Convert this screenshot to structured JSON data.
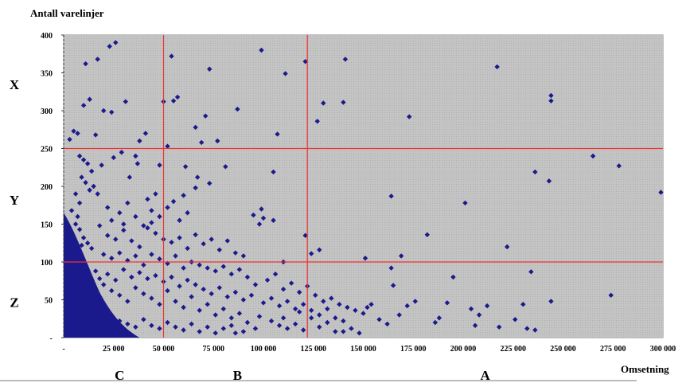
{
  "chart_data": {
    "type": "scatter",
    "ylabel": "Antall varelinjer",
    "xlabel": "Omsetning",
    "xlim": [
      0,
      300000
    ],
    "ylim": [
      0,
      400
    ],
    "x_ticks": [
      0,
      25000,
      50000,
      75000,
      100000,
      125000,
      150000,
      175000,
      200000,
      225000,
      250000,
      275000,
      300000
    ],
    "x_tick_labels": [
      "-",
      "25 000",
      "50 000",
      "75 000",
      "100 000",
      "125 000",
      "150 000",
      "175 000",
      "200 000",
      "225 000",
      "250 000",
      "275 000",
      "300 000"
    ],
    "y_ticks": [
      0,
      50,
      100,
      150,
      200,
      250,
      300,
      350,
      400
    ],
    "y_tick_labels": [
      "-",
      "50",
      "100",
      "150",
      "200",
      "250",
      "300",
      "350",
      "400"
    ],
    "x_segments": [
      {
        "label": "C",
        "x": 28000
      },
      {
        "label": "B",
        "x": 87000
      },
      {
        "label": "A",
        "x": 211000
      }
    ],
    "y_segments": [
      {
        "label": "X",
        "y": 335
      },
      {
        "label": "Y",
        "y": 182
      },
      {
        "label": "Z",
        "y": 47
      }
    ],
    "reference_lines": {
      "vertical": [
        50000,
        122000
      ],
      "horizontal": [
        100,
        250
      ],
      "color": "#ee3333"
    },
    "plot_background": "#c0c0c0",
    "marker_color": "#1a1a8c",
    "points": [
      [
        99000,
        380
      ],
      [
        26000,
        390
      ],
      [
        23000,
        385
      ],
      [
        11000,
        362
      ],
      [
        17000,
        368
      ],
      [
        54000,
        372
      ],
      [
        121000,
        365
      ],
      [
        141000,
        368
      ],
      [
        73000,
        355
      ],
      [
        111000,
        349
      ],
      [
        217000,
        358
      ],
      [
        13000,
        315
      ],
      [
        10000,
        307
      ],
      [
        20000,
        300
      ],
      [
        24000,
        298
      ],
      [
        31000,
        312
      ],
      [
        50000,
        312
      ],
      [
        55000,
        313
      ],
      [
        57000,
        318
      ],
      [
        71000,
        293
      ],
      [
        87000,
        302
      ],
      [
        130000,
        310
      ],
      [
        140000,
        311
      ],
      [
        173000,
        292
      ],
      [
        244000,
        320
      ],
      [
        244000,
        313
      ],
      [
        127000,
        286
      ],
      [
        5000,
        273
      ],
      [
        7000,
        270
      ],
      [
        16000,
        268
      ],
      [
        3000,
        262
      ],
      [
        38000,
        260
      ],
      [
        41000,
        270
      ],
      [
        66000,
        278
      ],
      [
        69000,
        258
      ],
      [
        77000,
        260
      ],
      [
        107000,
        269
      ],
      [
        52000,
        253
      ],
      [
        8000,
        240
      ],
      [
        10000,
        235
      ],
      [
        12000,
        230
      ],
      [
        14000,
        220
      ],
      [
        9000,
        212
      ],
      [
        11000,
        205
      ],
      [
        15000,
        200
      ],
      [
        13000,
        195
      ],
      [
        17000,
        190
      ],
      [
        19000,
        228
      ],
      [
        25000,
        238
      ],
      [
        29000,
        245
      ],
      [
        33000,
        212
      ],
      [
        36000,
        240
      ],
      [
        37000,
        230
      ],
      [
        48000,
        228
      ],
      [
        61000,
        226
      ],
      [
        67000,
        212
      ],
      [
        81000,
        226
      ],
      [
        66000,
        198
      ],
      [
        73000,
        204
      ],
      [
        105000,
        219
      ],
      [
        164000,
        187
      ],
      [
        201000,
        178
      ],
      [
        236000,
        219
      ],
      [
        243000,
        207
      ],
      [
        265000,
        240
      ],
      [
        278000,
        227
      ],
      [
        299000,
        192
      ],
      [
        95000,
        162
      ],
      [
        99000,
        170
      ],
      [
        100000,
        158
      ],
      [
        98000,
        150
      ],
      [
        105000,
        155
      ],
      [
        121000,
        135
      ],
      [
        110000,
        100
      ],
      [
        124000,
        111
      ],
      [
        128000,
        116
      ],
      [
        151000,
        105
      ],
      [
        169000,
        108
      ],
      [
        182000,
        136
      ],
      [
        222000,
        120
      ],
      [
        164000,
        92
      ],
      [
        165000,
        69
      ],
      [
        195000,
        80
      ],
      [
        234000,
        87
      ],
      [
        6000,
        150
      ],
      [
        8000,
        143
      ],
      [
        10000,
        132
      ],
      [
        12000,
        125
      ],
      [
        14000,
        118
      ],
      [
        18000,
        148
      ],
      [
        22000,
        135
      ],
      [
        26000,
        130
      ],
      [
        30000,
        142
      ],
      [
        34000,
        128
      ],
      [
        38000,
        120
      ],
      [
        42000,
        145
      ],
      [
        46000,
        138
      ],
      [
        50000,
        130
      ],
      [
        54000,
        126
      ],
      [
        58000,
        132
      ],
      [
        62000,
        118
      ],
      [
        66000,
        136
      ],
      [
        70000,
        124
      ],
      [
        74000,
        130
      ],
      [
        78000,
        116
      ],
      [
        82000,
        128
      ],
      [
        86000,
        112
      ],
      [
        90000,
        108
      ],
      [
        22000,
        172
      ],
      [
        28000,
        165
      ],
      [
        32000,
        178
      ],
      [
        44000,
        168
      ],
      [
        48000,
        160
      ],
      [
        52000,
        172
      ],
      [
        58000,
        155
      ],
      [
        62000,
        165
      ],
      [
        42000,
        183
      ],
      [
        46000,
        190
      ],
      [
        55000,
        180
      ],
      [
        60000,
        188
      ],
      [
        24000,
        155
      ],
      [
        30000,
        150
      ],
      [
        36000,
        160
      ],
      [
        40000,
        148
      ],
      [
        44000,
        152
      ],
      [
        20000,
        110
      ],
      [
        24000,
        105
      ],
      [
        28000,
        112
      ],
      [
        32000,
        102
      ],
      [
        36000,
        108
      ],
      [
        40000,
        96
      ],
      [
        44000,
        110
      ],
      [
        48000,
        104
      ],
      [
        52000,
        98
      ],
      [
        56000,
        108
      ],
      [
        60000,
        92
      ],
      [
        64000,
        100
      ],
      [
        68000,
        96
      ],
      [
        72000,
        92
      ],
      [
        76000,
        88
      ],
      [
        80000,
        94
      ],
      [
        84000,
        84
      ],
      [
        88000,
        90
      ],
      [
        92000,
        80
      ],
      [
        96000,
        70
      ],
      [
        102000,
        76
      ],
      [
        106000,
        84
      ],
      [
        110000,
        64
      ],
      [
        114000,
        72
      ],
      [
        118000,
        60
      ],
      [
        122000,
        68
      ],
      [
        126000,
        56
      ],
      [
        130000,
        48
      ],
      [
        134000,
        52
      ],
      [
        138000,
        44
      ],
      [
        142000,
        40
      ],
      [
        146000,
        36
      ],
      [
        150000,
        32
      ],
      [
        154000,
        44
      ],
      [
        158000,
        24
      ],
      [
        162000,
        18
      ],
      [
        168000,
        30
      ],
      [
        176000,
        48
      ],
      [
        186000,
        20
      ],
      [
        192000,
        46
      ],
      [
        204000,
        38
      ],
      [
        208000,
        30
      ],
      [
        212000,
        42
      ],
      [
        218000,
        14
      ],
      [
        226000,
        24
      ],
      [
        230000,
        44
      ],
      [
        236000,
        10
      ],
      [
        244000,
        48
      ],
      [
        274000,
        56
      ],
      [
        232000,
        12
      ],
      [
        206000,
        16
      ],
      [
        188000,
        26
      ],
      [
        172000,
        42
      ],
      [
        152000,
        40
      ],
      [
        140000,
        8
      ],
      [
        118000,
        34
      ],
      [
        110000,
        26
      ],
      [
        96000,
        12
      ],
      [
        90000,
        8
      ],
      [
        20000,
        70
      ],
      [
        24000,
        62
      ],
      [
        28000,
        56
      ],
      [
        32000,
        48
      ],
      [
        36000,
        66
      ],
      [
        40000,
        58
      ],
      [
        44000,
        52
      ],
      [
        48000,
        44
      ],
      [
        52000,
        62
      ],
      [
        56000,
        48
      ],
      [
        60000,
        40
      ],
      [
        64000,
        54
      ],
      [
        68000,
        36
      ],
      [
        72000,
        44
      ],
      [
        76000,
        30
      ],
      [
        80000,
        38
      ],
      [
        84000,
        26
      ],
      [
        88000,
        32
      ],
      [
        92000,
        20
      ],
      [
        98000,
        28
      ],
      [
        104000,
        22
      ],
      [
        108000,
        16
      ],
      [
        112000,
        12
      ],
      [
        116000,
        18
      ],
      [
        120000,
        10
      ],
      [
        124000,
        26
      ],
      [
        128000,
        14
      ],
      [
        132000,
        20
      ],
      [
        136000,
        8
      ],
      [
        144000,
        12
      ],
      [
        148000,
        6
      ],
      [
        20000,
        30
      ],
      [
        24000,
        26
      ],
      [
        28000,
        22
      ],
      [
        32000,
        18
      ],
      [
        36000,
        14
      ],
      [
        40000,
        24
      ],
      [
        44000,
        16
      ],
      [
        48000,
        12
      ],
      [
        52000,
        20
      ],
      [
        56000,
        14
      ],
      [
        60000,
        10
      ],
      [
        64000,
        18
      ],
      [
        68000,
        8
      ],
      [
        72000,
        14
      ],
      [
        76000,
        6
      ],
      [
        80000,
        12
      ],
      [
        84000,
        16
      ],
      [
        86000,
        6
      ],
      [
        6000,
        190
      ],
      [
        8000,
        178
      ],
      [
        4000,
        168
      ],
      [
        7000,
        160
      ],
      [
        3000,
        140
      ],
      [
        5000,
        128
      ],
      [
        9000,
        122
      ],
      [
        16000,
        88
      ],
      [
        18000,
        78
      ],
      [
        22000,
        84
      ],
      [
        26000,
        76
      ],
      [
        30000,
        90
      ],
      [
        34000,
        80
      ],
      [
        38000,
        86
      ],
      [
        42000,
        78
      ],
      [
        46000,
        82
      ],
      [
        50000,
        74
      ],
      [
        54000,
        80
      ],
      [
        58000,
        68
      ],
      [
        62000,
        76
      ],
      [
        66000,
        70
      ],
      [
        70000,
        64
      ],
      [
        74000,
        58
      ],
      [
        78000,
        66
      ],
      [
        82000,
        54
      ],
      [
        86000,
        60
      ],
      [
        90000,
        50
      ],
      [
        94000,
        56
      ],
      [
        100000,
        46
      ],
      [
        104000,
        52
      ],
      [
        108000,
        42
      ],
      [
        112000,
        48
      ],
      [
        116000,
        38
      ],
      [
        120000,
        44
      ],
      [
        124000,
        36
      ],
      [
        128000,
        30
      ],
      [
        132000,
        38
      ],
      [
        136000,
        26
      ],
      [
        140000,
        22
      ]
    ]
  }
}
